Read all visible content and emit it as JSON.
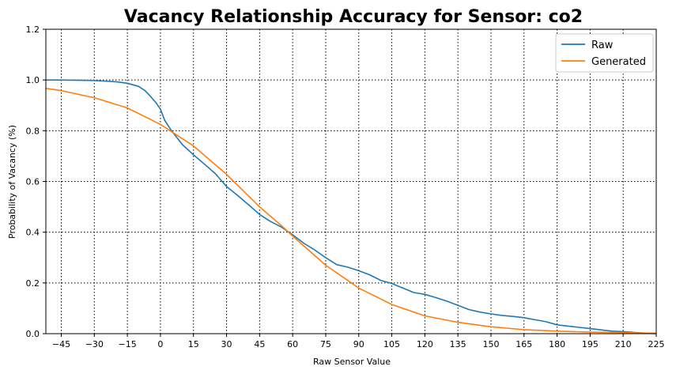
{
  "chart_data": {
    "type": "line",
    "title": "Vacancy Relationship Accuracy for Sensor: co2",
    "xlabel": "Raw Sensor Value",
    "ylabel": "Probability of Vacancy (%)",
    "xlim": [
      -52,
      225
    ],
    "ylim": [
      0,
      1.2
    ],
    "xticks": [
      -45,
      -30,
      -15,
      0,
      15,
      30,
      45,
      60,
      75,
      90,
      105,
      120,
      135,
      150,
      165,
      180,
      195,
      210,
      225
    ],
    "yticks": [
      0.0,
      0.2,
      0.4,
      0.6,
      0.8,
      1.0,
      1.2
    ],
    "grid": true,
    "legend_position": "top-right",
    "series": [
      {
        "name": "Raw",
        "color": "#1f77b4",
        "x": [
          -52,
          -45,
          -30,
          -20,
          -15,
          -10,
          -7,
          -5,
          -2,
          0,
          2,
          5,
          10,
          15,
          20,
          25,
          30,
          35,
          40,
          45,
          50,
          55,
          60,
          65,
          70,
          75,
          80,
          85,
          90,
          95,
          100,
          105,
          110,
          115,
          120,
          125,
          130,
          135,
          140,
          145,
          150,
          155,
          160,
          165,
          170,
          175,
          180,
          185,
          190,
          195,
          200,
          205,
          210,
          215,
          220,
          225
        ],
        "y": [
          1.0,
          1.0,
          0.998,
          0.993,
          0.987,
          0.975,
          0.958,
          0.94,
          0.91,
          0.885,
          0.84,
          0.8,
          0.745,
          0.705,
          0.668,
          0.63,
          0.58,
          0.545,
          0.508,
          0.47,
          0.442,
          0.42,
          0.39,
          0.357,
          0.33,
          0.3,
          0.272,
          0.262,
          0.248,
          0.232,
          0.21,
          0.198,
          0.18,
          0.162,
          0.155,
          0.142,
          0.128,
          0.112,
          0.095,
          0.085,
          0.078,
          0.072,
          0.068,
          0.063,
          0.055,
          0.047,
          0.035,
          0.03,
          0.025,
          0.02,
          0.015,
          0.01,
          0.008,
          0.005,
          0.002,
          0.0
        ]
      },
      {
        "name": "Generated",
        "color": "#ff7f0e",
        "x": [
          -52,
          -45,
          -30,
          -15,
          0,
          15,
          30,
          45,
          55,
          60,
          75,
          90,
          105,
          120,
          135,
          150,
          165,
          180,
          195,
          210,
          225
        ],
        "y": [
          0.967,
          0.958,
          0.93,
          0.89,
          0.825,
          0.74,
          0.628,
          0.5,
          0.425,
          0.385,
          0.27,
          0.18,
          0.115,
          0.07,
          0.045,
          0.027,
          0.016,
          0.01,
          0.006,
          0.004,
          0.002
        ]
      }
    ]
  }
}
